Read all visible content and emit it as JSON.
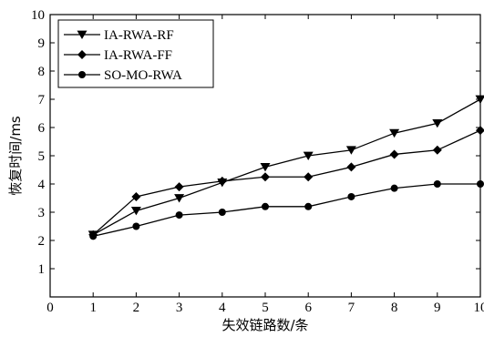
{
  "chart_data": {
    "type": "line",
    "title": "",
    "xlabel": "失效链路数/条",
    "ylabel": "恢复时间/ms",
    "xlim": [
      0,
      10
    ],
    "ylim": [
      0,
      10
    ],
    "xticks": [
      0,
      1,
      2,
      3,
      4,
      5,
      6,
      7,
      8,
      9,
      10
    ],
    "yticks": [
      1,
      2,
      3,
      4,
      5,
      6,
      7,
      8,
      9,
      10
    ],
    "grid": false,
    "legend_position": "top-left",
    "x": [
      1,
      2,
      3,
      4,
      5,
      6,
      7,
      8,
      9,
      10
    ],
    "series": [
      {
        "name": "IA-RWA-RF",
        "marker": "triangle-down",
        "values": [
          2.2,
          3.05,
          3.5,
          4.05,
          4.6,
          5.0,
          5.2,
          5.8,
          6.15,
          7.0
        ]
      },
      {
        "name": "IA-RWA-FF",
        "marker": "diamond",
        "values": [
          2.2,
          3.55,
          3.9,
          4.1,
          4.25,
          4.25,
          4.6,
          5.05,
          5.2,
          5.9
        ]
      },
      {
        "name": "SO-MO-RWA",
        "marker": "circle",
        "values": [
          2.15,
          2.5,
          2.9,
          3.0,
          3.2,
          3.2,
          3.55,
          3.85,
          4.0,
          4.0
        ]
      }
    ]
  }
}
